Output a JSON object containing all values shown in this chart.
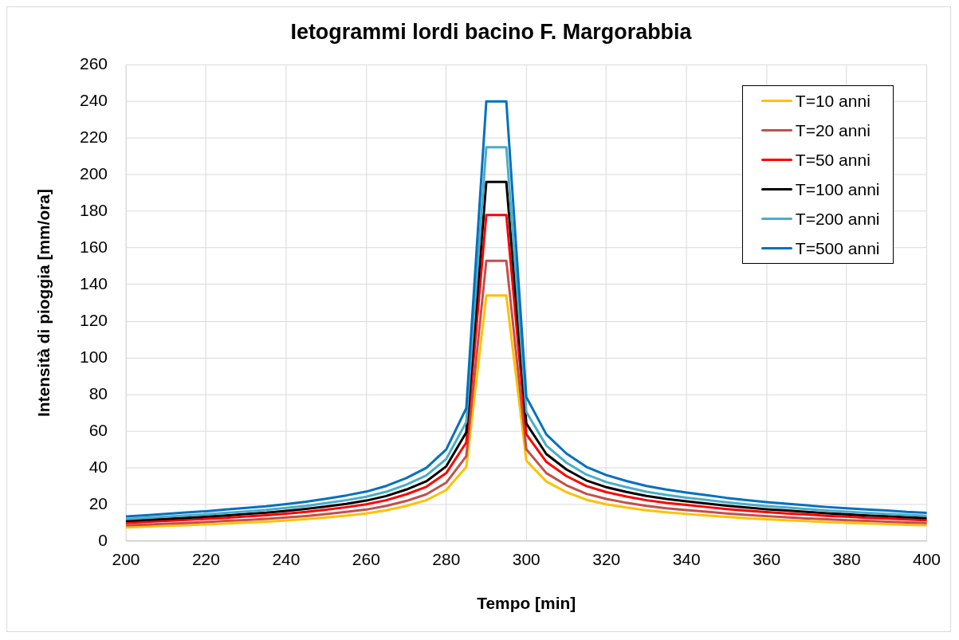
{
  "chart_data": {
    "type": "line",
    "title": "Ietogrammi lordi bacino F. Margorabbia",
    "xlabel": "Tempo [min]",
    "ylabel": "Intensità di pioggia [mm/ora]",
    "x": [
      200,
      205,
      210,
      215,
      220,
      225,
      230,
      235,
      240,
      245,
      250,
      255,
      260,
      265,
      270,
      275,
      280,
      285,
      290,
      295,
      300,
      305,
      310,
      315,
      320,
      325,
      330,
      335,
      340,
      345,
      350,
      355,
      360,
      365,
      370,
      375,
      380,
      385,
      390,
      395,
      400
    ],
    "xlim": [
      200,
      400
    ],
    "xticks": [
      200,
      220,
      240,
      260,
      280,
      300,
      320,
      340,
      360,
      380,
      400
    ],
    "ylim": [
      0,
      260
    ],
    "yticks": [
      0,
      20,
      40,
      60,
      80,
      100,
      120,
      140,
      160,
      180,
      200,
      220,
      240,
      260
    ],
    "grid": true,
    "legend": "top right",
    "marker": "none",
    "line_style": "solid",
    "series": [
      {
        "name": "T=10 anni",
        "color": "#ffc000",
        "values": [
          7.5,
          7.9,
          8.3,
          8.7,
          9.1,
          9.6,
          10.1,
          10.6,
          11.3,
          12.0,
          12.9,
          13.9,
          15.1,
          16.8,
          19.2,
          22.3,
          27.9,
          40.5,
          134,
          134,
          43.9,
          32.5,
          26.7,
          22.6,
          20.1,
          18.3,
          16.8,
          15.7,
          14.8,
          14.0,
          13.2,
          12.5,
          11.9,
          11.4,
          10.9,
          10.4,
          10.0,
          9.6,
          9.3,
          8.9,
          8.6
        ]
      },
      {
        "name": "T=20 anni",
        "color": "#c0504d",
        "values": [
          8.6,
          9.0,
          9.5,
          9.9,
          10.4,
          11.0,
          11.5,
          12.1,
          12.9,
          13.7,
          14.7,
          15.9,
          17.2,
          19.2,
          21.9,
          25.5,
          31.9,
          46.3,
          153,
          153,
          50.1,
          37.1,
          30.5,
          25.8,
          23.0,
          20.9,
          19.2,
          17.9,
          16.9,
          16.0,
          15.1,
          14.3,
          13.6,
          13.0,
          12.4,
          11.9,
          11.4,
          11.0,
          10.6,
          10.2,
          9.8
        ]
      },
      {
        "name": "T=50 anni",
        "color": "#ff0000",
        "values": [
          10.0,
          10.5,
          11.0,
          11.6,
          12.1,
          12.7,
          13.4,
          14.1,
          15.0,
          15.9,
          17.1,
          18.5,
          20.1,
          22.3,
          25.5,
          29.6,
          37.1,
          53.8,
          178,
          178,
          58.3,
          43.2,
          35.5,
          30.0,
          26.7,
          24.3,
          22.3,
          20.8,
          19.7,
          18.6,
          17.5,
          16.6,
          15.8,
          15.1,
          14.5,
          13.8,
          13.3,
          12.7,
          12.4,
          11.8,
          11.4
        ]
      },
      {
        "name": "T=100 anni",
        "color": "#000000",
        "values": [
          11.0,
          11.6,
          12.1,
          12.7,
          13.3,
          14.0,
          14.8,
          15.5,
          16.5,
          17.6,
          18.9,
          20.3,
          22.1,
          24.6,
          28.1,
          32.6,
          40.8,
          59.3,
          196,
          196,
          64.2,
          47.5,
          39.1,
          33.1,
          29.4,
          26.8,
          24.6,
          23.0,
          21.7,
          20.5,
          19.3,
          18.3,
          17.4,
          16.7,
          15.9,
          15.2,
          14.6,
          14.0,
          13.6,
          13.0,
          12.6
        ]
      },
      {
        "name": "T=200 anni",
        "color": "#4bacc6",
        "values": [
          12.0,
          12.7,
          13.3,
          14.0,
          14.6,
          15.4,
          16.2,
          17.0,
          18.1,
          19.2,
          20.7,
          22.3,
          24.2,
          26.9,
          30.8,
          35.8,
          44.8,
          65.0,
          215,
          215,
          70.4,
          52.1,
          42.8,
          36.3,
          32.2,
          29.4,
          26.9,
          25.2,
          23.7,
          22.5,
          21.2,
          20.1,
          19.1,
          18.3,
          17.5,
          16.7,
          16.0,
          15.4,
          14.9,
          14.3,
          13.8
        ]
      },
      {
        "name": "T=500 anni",
        "color": "#0070c0",
        "values": [
          13.4,
          14.1,
          14.9,
          15.6,
          16.3,
          17.2,
          18.1,
          19.0,
          20.2,
          21.5,
          23.1,
          24.9,
          27.0,
          30.1,
          34.4,
          39.9,
          50.0,
          72.5,
          240,
          240,
          78.6,
          58.2,
          47.8,
          40.5,
          36.0,
          32.8,
          30.1,
          28.1,
          26.5,
          25.1,
          23.6,
          22.4,
          21.3,
          20.4,
          19.5,
          18.6,
          17.9,
          17.2,
          16.7,
          15.9,
          15.4
        ]
      }
    ]
  }
}
